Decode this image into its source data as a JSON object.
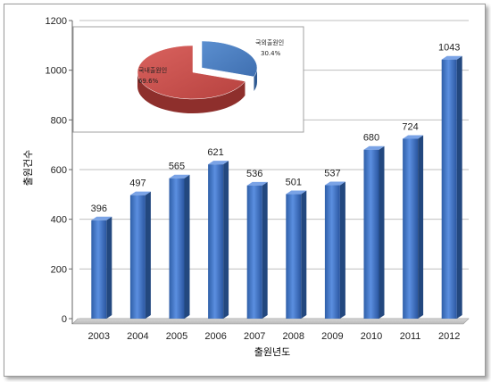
{
  "chart_data": [
    {
      "type": "bar",
      "categories": [
        "2003",
        "2004",
        "2005",
        "2006",
        "2007",
        "2008",
        "2009",
        "2010",
        "2011",
        "2012"
      ],
      "values": [
        396,
        497,
        565,
        621,
        536,
        501,
        537,
        680,
        724,
        1043
      ],
      "xlabel": "출원년도",
      "ylabel": "출원건수",
      "ylim": [
        0,
        1200
      ],
      "yticks": [
        0,
        200,
        400,
        600,
        800,
        1000,
        1200
      ],
      "grid": true,
      "color": "#3d72c8"
    },
    {
      "type": "pie",
      "slices": [
        {
          "label": "국외출원인",
          "value": 30.4,
          "display": "30.4%",
          "color": "#4a7ec0"
        },
        {
          "label": "국내출원인",
          "value": 69.6,
          "display": "69.6%",
          "color": "#c0504d"
        }
      ]
    }
  ]
}
